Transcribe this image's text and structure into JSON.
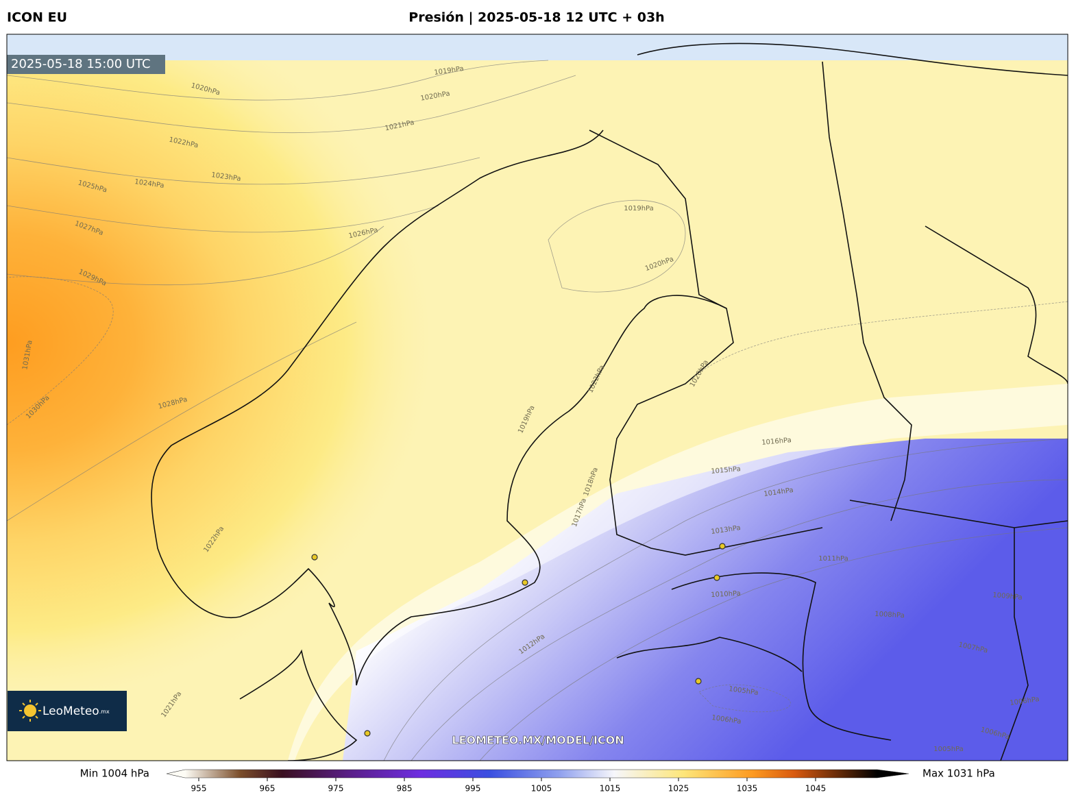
{
  "header": {
    "model": "ICON EU",
    "title": "Presión | 2025-05-18 12 UTC + 03h"
  },
  "map": {
    "valid_time": "2025-05-18 15:00 UTC",
    "watermark": "LEOMETEO.MX/MODEL/ICON",
    "logo": {
      "name": "LeoMeteo",
      "suffix": ".mx"
    },
    "isobar_labels": [
      "1019hPa",
      "1020hPa",
      "1020hPa",
      "1021hPa",
      "1022hPa",
      "1023hPa",
      "1024hPa",
      "1025hPa",
      "1026hPa",
      "1027hPa",
      "1028hPa",
      "1029hPa",
      "1030hPa",
      "1031hPa",
      "1019hPa",
      "1020hPa",
      "1020hPa",
      "1022hPa",
      "1016hPa",
      "1015hPa",
      "1014hPa",
      "1013hPa",
      "1011hPa",
      "1010hPa",
      "1009hPa",
      "1008hPa",
      "1007hPa",
      "1006hPa",
      "1005hPa",
      "1005hPa",
      "1006hPa",
      "1012hPa",
      "1017hPa",
      "1018hPa",
      "1019hPa",
      "1022hPa",
      "1021hPa",
      "1006hPa"
    ]
  },
  "colorbar": {
    "min_label": "Min 1004 hPa",
    "max_label": "Max 1031 hPa",
    "lim": [
      953,
      1053
    ],
    "ticks": [
      955,
      965,
      975,
      985,
      995,
      1005,
      1015,
      1025,
      1035,
      1045
    ]
  }
}
